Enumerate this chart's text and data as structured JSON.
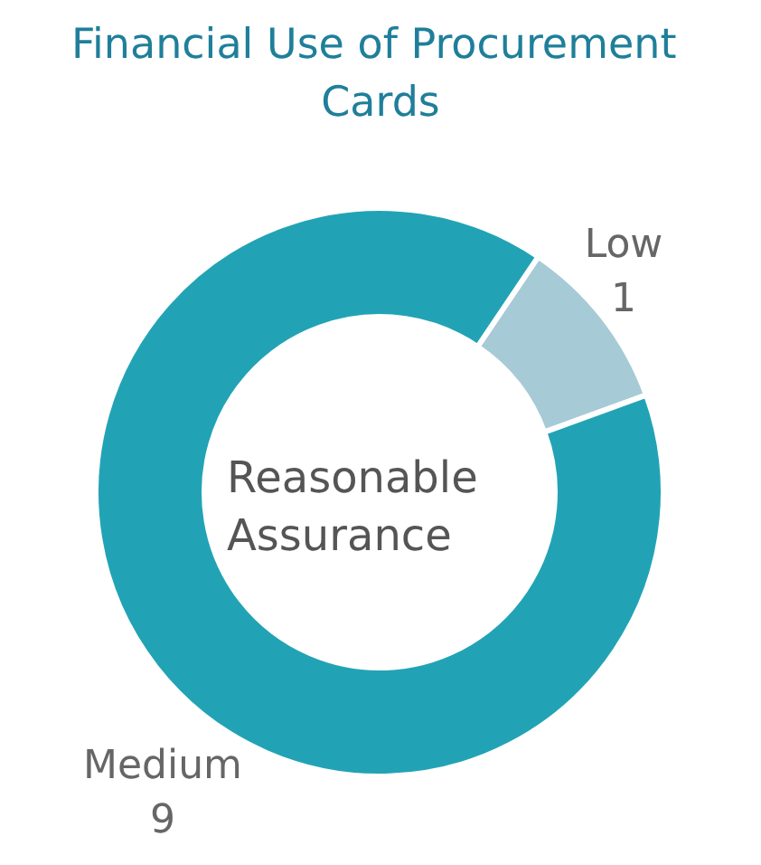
{
  "chart_data": {
    "type": "donut",
    "title": "Financial Use of Procurement Cards",
    "categories": [
      "Low",
      "Medium"
    ],
    "values": [
      1,
      9
    ],
    "colors": [
      "#a6cbd6",
      "#22a3b5"
    ],
    "annotations": [
      "Reasonable Assurance"
    ],
    "data_labels": true,
    "legend": false
  }
}
